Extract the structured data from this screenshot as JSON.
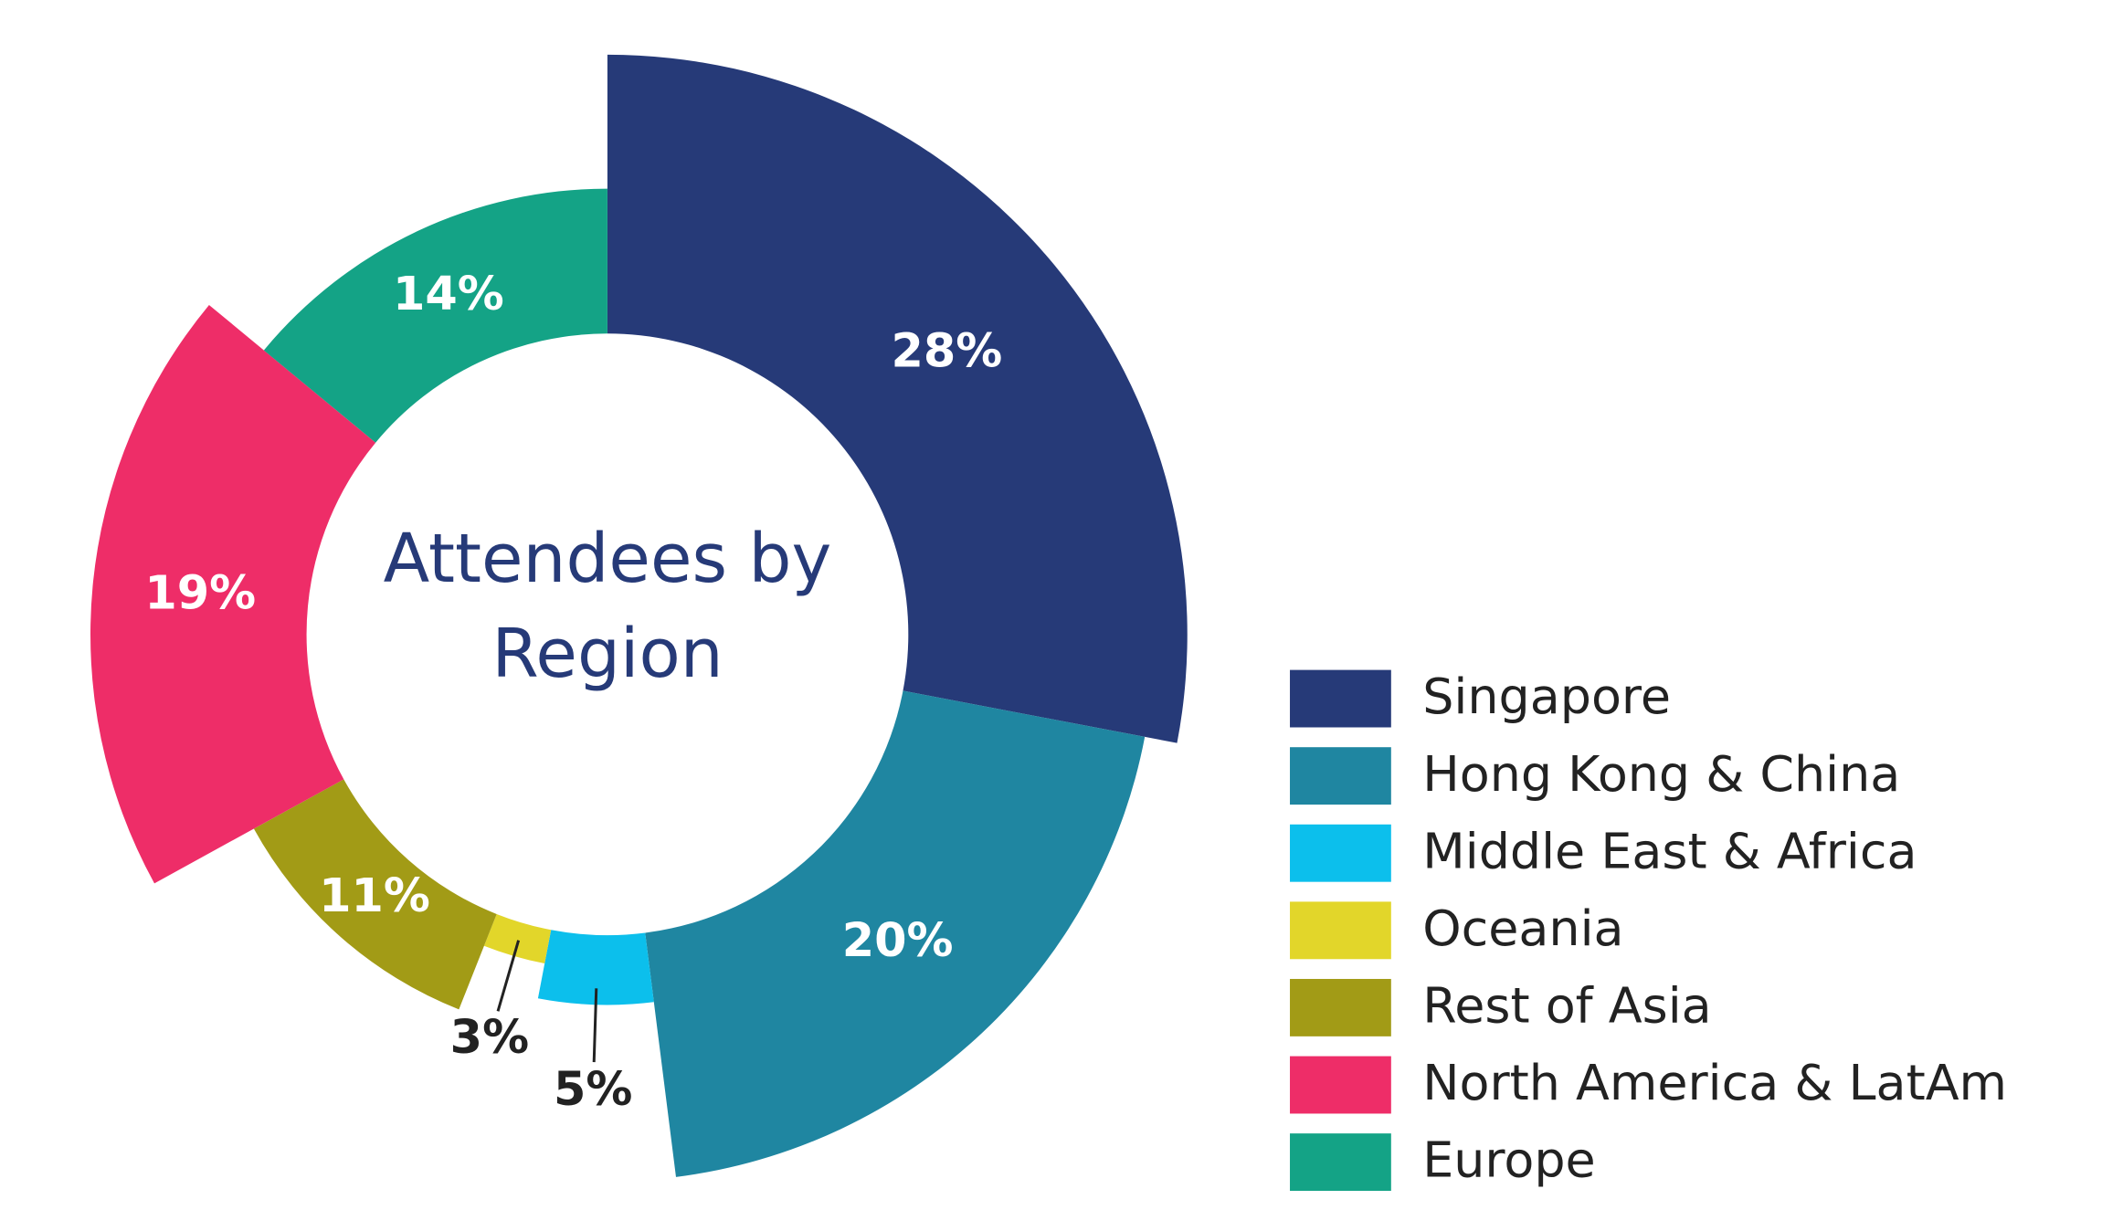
{
  "chart_data": {
    "type": "pie",
    "title": "Attendees by Region",
    "categories": [
      "Singapore",
      "Hong Kong & China",
      "Middle East & Africa",
      "Oceania",
      "Rest of Asia",
      "North America & LatAm",
      "Europe"
    ],
    "values": [
      28,
      20,
      5,
      3,
      11,
      19,
      14
    ],
    "value_labels": [
      "28%",
      "20%",
      "5%",
      "3%",
      "11%",
      "19%",
      "14%"
    ],
    "colors": [
      "#263a78",
      "#1f86a1",
      "#0cbfec",
      "#e2d62a",
      "#a29b16",
      "#ee2d68",
      "#14a386"
    ],
    "legend": "right"
  }
}
